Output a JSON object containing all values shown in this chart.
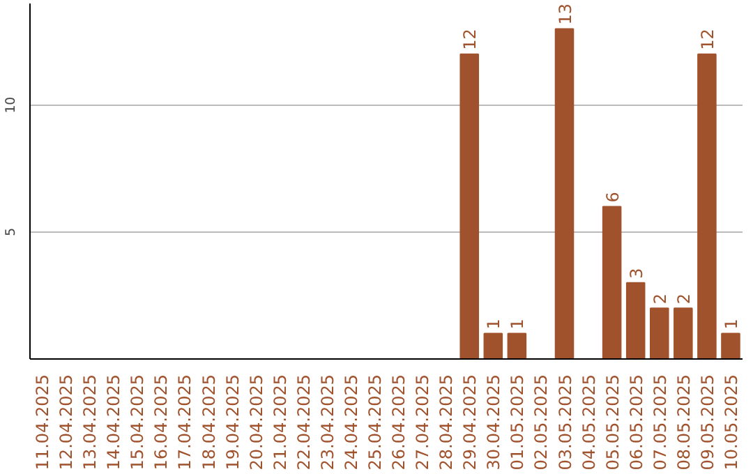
{
  "chart_data": {
    "type": "bar",
    "categories": [
      "11.04.2025",
      "12.04.2025",
      "13.04.2025",
      "14.04.2025",
      "15.04.2025",
      "16.04.2025",
      "17.04.2025",
      "18.04.2025",
      "19.04.2025",
      "20.04.2025",
      "21.04.2025",
      "22.04.2025",
      "23.04.2025",
      "24.04.2025",
      "25.04.2025",
      "26.04.2025",
      "27.04.2025",
      "28.04.2025",
      "29.04.2025",
      "30.04.2025",
      "01.05.2025",
      "02.05.2025",
      "03.05.2025",
      "04.05.2025",
      "05.05.2025",
      "06.05.2025",
      "07.05.2025",
      "08.05.2025",
      "09.05.2025",
      "10.05.2025"
    ],
    "values": [
      0,
      0,
      0,
      0,
      0,
      0,
      0,
      0,
      0,
      0,
      0,
      0,
      0,
      0,
      0,
      0,
      0,
      0,
      12,
      1,
      1,
      0,
      13,
      0,
      6,
      3,
      2,
      2,
      12,
      1
    ],
    "value_labels": [
      null,
      null,
      null,
      null,
      null,
      null,
      null,
      null,
      null,
      null,
      null,
      null,
      null,
      null,
      null,
      null,
      null,
      null,
      "12",
      "1",
      "1",
      null,
      "13",
      null,
      "6",
      "3",
      "2",
      "2",
      "12",
      "1"
    ],
    "color": "#a0522d",
    "ylim": [
      0,
      14
    ],
    "yticks": [
      5,
      10
    ],
    "grid": "y"
  }
}
